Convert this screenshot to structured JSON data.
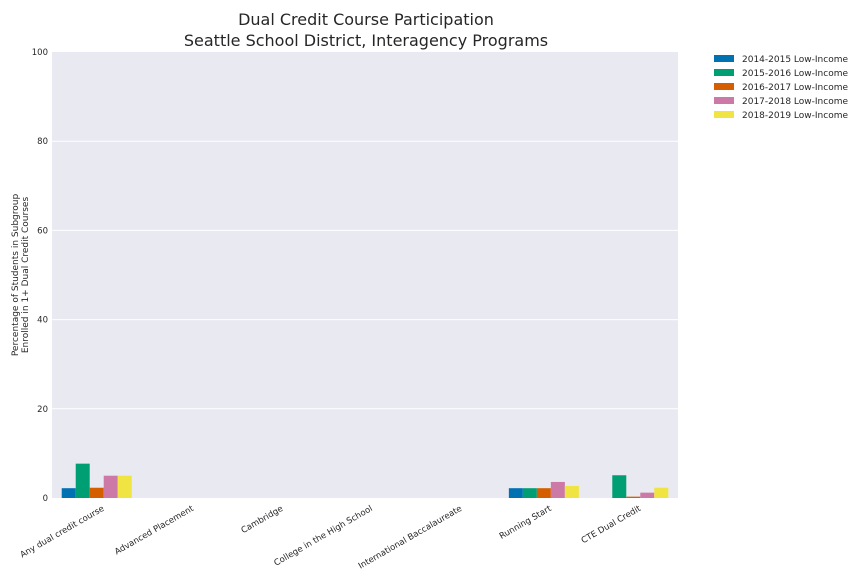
{
  "chart_data": {
    "type": "bar",
    "title": "Dual Credit Course Participation",
    "subtitle": "Seattle School District, Interagency Programs",
    "xlabel": "",
    "ylabel": "Percentage of Students in Subgroup\nEnrolled in 1+ Dual Credit Courses",
    "ylim": [
      0,
      100
    ],
    "yticks": [
      0,
      20,
      40,
      60,
      80,
      100
    ],
    "grid": true,
    "legend_position": "outside-top-right",
    "categories": [
      "Any dual credit course",
      "Advanced Placement",
      "Cambridge",
      "College in the High School",
      "International Baccalaureate",
      "Running Start",
      "CTE Dual Credit"
    ],
    "series": [
      {
        "name": "2014-2015 Low-Income",
        "color": "#0072b2",
        "values": [
          2.2,
          0,
          0,
          0,
          0,
          2.2,
          0
        ]
      },
      {
        "name": "2015-2016 Low-Income",
        "color": "#009e73",
        "values": [
          7.7,
          0,
          0,
          0,
          0,
          2.2,
          5.1
        ]
      },
      {
        "name": "2016-2017 Low-Income",
        "color": "#d55e00",
        "values": [
          2.3,
          0,
          0,
          0,
          0,
          2.2,
          0.3
        ]
      },
      {
        "name": "2017-2018 Low-Income",
        "color": "#cc79a7",
        "values": [
          5.0,
          0,
          0,
          0,
          0,
          3.6,
          1.2
        ]
      },
      {
        "name": "2018-2019 Low-Income",
        "color": "#f0e442",
        "values": [
          5.0,
          0,
          0,
          0,
          0,
          2.7,
          2.3
        ]
      }
    ],
    "colors": {
      "plot_background": "#e9e9f1",
      "grid": "#ffffff"
    }
  }
}
